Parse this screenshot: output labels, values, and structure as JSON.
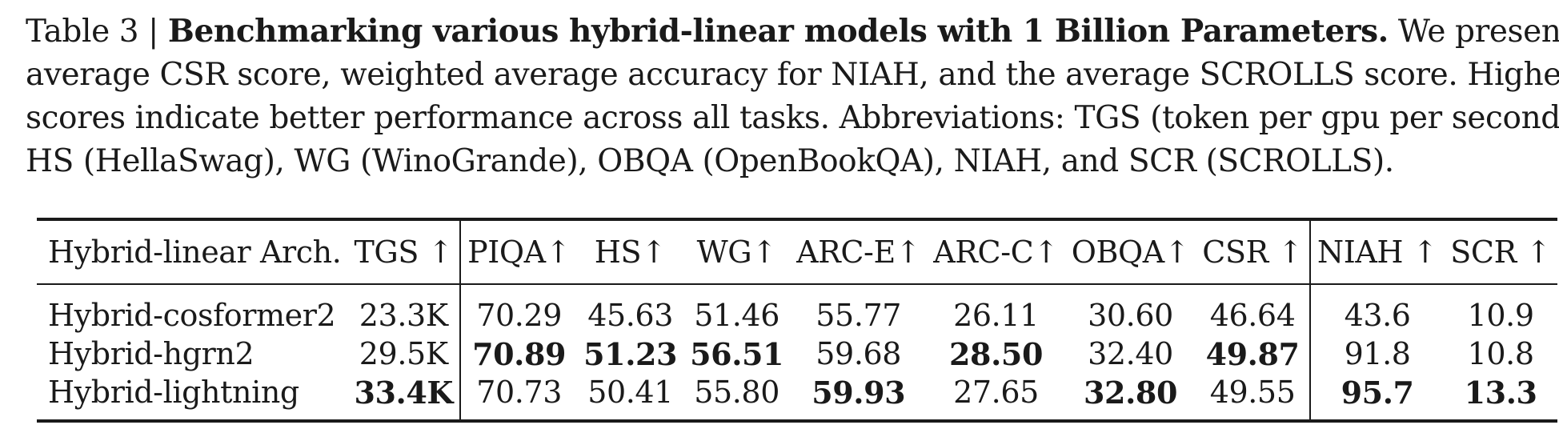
{
  "caption": {
    "label": "Table 3 | ",
    "bold_title": "Benchmarking various hybrid-linear models with 1 Billion Parameters.",
    "lines": [
      " We present the",
      "average CSR score, weighted average accuracy for NIAH, and the average SCROLLS score. Higher",
      "scores indicate better performance across all tasks. Abbreviations: TGS (token per gpu per second),",
      "HS (HellaSwag), WG (WinoGrande), OBQA (OpenBookQA), NIAH, and SCR (SCROLLS)."
    ]
  },
  "table": {
    "headers": [
      "Hybrid-linear Arch.",
      "TGS ↑",
      "PIQA↑",
      "HS↑",
      "WG↑",
      "ARC-E↑",
      "ARC-C↑",
      "OBQA↑",
      "CSR ↑",
      "NIAH ↑",
      "SCR ↑"
    ],
    "rows": [
      {
        "arch": "Hybrid-cosformer2",
        "values": [
          "23.3K",
          "70.29",
          "45.63",
          "51.46",
          "55.77",
          "26.11",
          "30.60",
          "46.64",
          "43.6",
          "10.9"
        ],
        "bold": [
          false,
          false,
          false,
          false,
          false,
          false,
          false,
          false,
          false,
          false
        ]
      },
      {
        "arch": "Hybrid-hgrn2",
        "values": [
          "29.5K",
          "70.89",
          "51.23",
          "56.51",
          "59.68",
          "28.50",
          "32.40",
          "49.87",
          "91.8",
          "10.8"
        ],
        "bold": [
          false,
          true,
          true,
          true,
          false,
          true,
          false,
          true,
          false,
          false
        ]
      },
      {
        "arch": "Hybrid-lightning",
        "values": [
          "33.4K",
          "70.73",
          "50.41",
          "55.80",
          "59.93",
          "27.65",
          "32.80",
          "49.55",
          "95.7",
          "13.3"
        ],
        "bold": [
          true,
          false,
          false,
          false,
          true,
          false,
          true,
          false,
          true,
          true
        ]
      }
    ]
  }
}
